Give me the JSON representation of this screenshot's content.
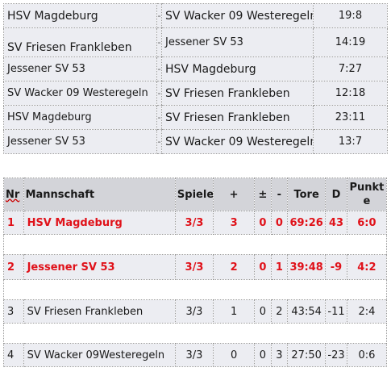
{
  "matches": [
    {
      "home": "HSV Magdeburg",
      "sep": "-",
      "away": "SV Wacker 09 Westeregeln",
      "score": "19:8"
    },
    {
      "home": "SV Friesen Frankleben",
      "sep": "-",
      "away": "Jessener SV 53",
      "score": "14:19"
    },
    {
      "home": "Jessener SV 53",
      "sep": "-",
      "away": "HSV Magdeburg",
      "score": "7:27"
    },
    {
      "home": "SV Wacker 09 Westeregeln",
      "sep": "-",
      "away": "SV Friesen Frankleben",
      "score": "12:18"
    },
    {
      "home": "HSV Magdeburg",
      "sep": "-",
      "away": "SV Friesen Frankleben",
      "score": "23:11"
    },
    {
      "home": "Jessener SV 53",
      "sep": "-",
      "away": "SV Wacker 09 Westeregeln",
      "score": "13:7"
    }
  ],
  "standings": {
    "headers": {
      "nr": "Nr",
      "team": "Mannschaft",
      "games": "Spiele",
      "won": "+",
      "draw": "±",
      "lost": "-",
      "goals": "Tore",
      "diff": "D",
      "points": "Punkte"
    },
    "rows": [
      {
        "nr": "1",
        "team": "HSV Magdeburg",
        "games": "3/3",
        "won": "3",
        "draw": "0",
        "lost": "0",
        "goals": "69:26",
        "diff": "43",
        "points": "6:0"
      },
      {
        "nr": "2",
        "team": "Jessener SV 53",
        "games": "3/3",
        "won": "2",
        "draw": "0",
        "lost": "1",
        "goals": "39:48",
        "diff": "-9",
        "points": "4:2"
      },
      {
        "nr": "3",
        "team": "SV Friesen Frankleben",
        "games": "3/3",
        "won": "1",
        "draw": "0",
        "lost": "2",
        "goals": "43:54",
        "diff": "-11",
        "points": "2:4"
      },
      {
        "nr": "4",
        "team": "SV Wacker 09Westeregeln",
        "games": "3/3",
        "won": "0",
        "draw": "0",
        "lost": "3",
        "goals": "27:50",
        "diff": "-23",
        "points": "0:6"
      }
    ],
    "highlight_color": "#e0121a"
  }
}
